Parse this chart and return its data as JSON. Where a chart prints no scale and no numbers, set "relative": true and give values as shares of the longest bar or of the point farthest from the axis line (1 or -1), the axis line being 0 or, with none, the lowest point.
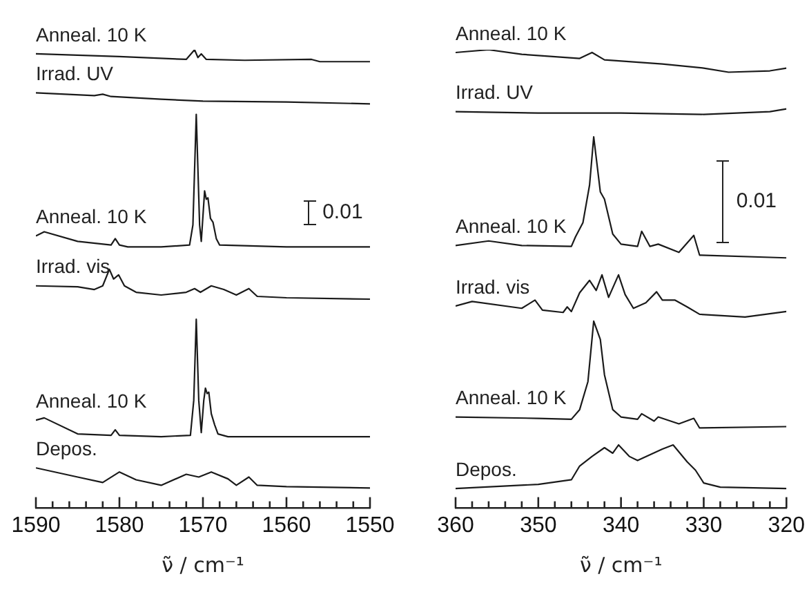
{
  "chart_data": [
    {
      "type": "line",
      "relative": true,
      "marker": "none",
      "xlabel": "ν̃ / cm⁻¹",
      "xlim": [
        1590,
        1550
      ],
      "xticks": [
        1590,
        {
          "value": 1588,
          "label": null
        },
        {
          "value": 1586,
          "label": null
        },
        {
          "value": 1584,
          "label": null
        },
        {
          "value": 1582,
          "label": null
        },
        1580,
        {
          "value": 1578,
          "label": null
        },
        {
          "value": 1576,
          "label": null
        },
        {
          "value": 1574,
          "label": null
        },
        {
          "value": 1572,
          "label": null
        },
        1570,
        {
          "value": 1568,
          "label": null
        },
        {
          "value": 1566,
          "label": null
        },
        {
          "value": 1564,
          "label": null
        },
        {
          "value": 1562,
          "label": null
        },
        1560,
        {
          "value": 1558,
          "label": null
        },
        {
          "value": 1556,
          "label": null
        },
        {
          "value": 1554,
          "label": null
        },
        {
          "value": 1552,
          "label": null
        },
        1550
      ],
      "annotations": [
        "0.01"
      ],
      "series": [
        {
          "name": "Anneal. 10 K",
          "color": "#1a1a1a",
          "x": [
            1590,
            1580,
            1572,
            1571,
            1570.6,
            1570.2,
            1569.6,
            1565,
            1557,
            1556,
            1550
          ],
          "values": [
            0.991,
            0.985,
            0.979,
            1,
            0.983,
            0.991,
            0.979,
            0.977,
            0.979,
            0.974,
            0.974
          ]
        },
        {
          "name": "Irrad. UV",
          "color": "#1a1a1a",
          "x": [
            1590,
            1583,
            1582,
            1581,
            1575,
            1570,
            1560,
            1550
          ],
          "values": [
            0.906,
            0.9,
            0.903,
            0.898,
            0.892,
            0.888,
            0.886,
            0.882
          ]
        },
        {
          "name": "Anneal. 10 K",
          "color": "#1a1a1a",
          "x": [
            1590,
            1589,
            1585,
            1581,
            1580.5,
            1580,
            1579,
            1575,
            1571.6,
            1571.2,
            1570.8,
            1570.4,
            1570.2,
            1569.8,
            1569.6,
            1569.4,
            1569.1,
            1568.8,
            1568.4,
            1568,
            1560,
            1550
          ],
          "values": [
            0.594,
            0.603,
            0.582,
            0.574,
            0.588,
            0.574,
            0.57,
            0.57,
            0.574,
            0.618,
            0.859,
            0.618,
            0.582,
            0.692,
            0.674,
            0.677,
            0.632,
            0.624,
            0.588,
            0.574,
            0.57,
            0.57
          ]
        },
        {
          "name": "Irrad. vis",
          "color": "#1a1a1a",
          "x": [
            1590,
            1585,
            1583,
            1582,
            1581.2,
            1580.7,
            1580.1,
            1579.4,
            1578,
            1575,
            1572,
            1571,
            1570.3,
            1569,
            1567.5,
            1566,
            1564.5,
            1563.5,
            1560,
            1550
          ],
          "values": [
            0.485,
            0.483,
            0.477,
            0.485,
            0.521,
            0.5,
            0.509,
            0.485,
            0.471,
            0.465,
            0.471,
            0.479,
            0.471,
            0.485,
            0.477,
            0.465,
            0.479,
            0.462,
            0.459,
            0.456
          ]
        },
        {
          "name": "Anneal. 10 K",
          "color": "#1a1a1a",
          "x": [
            1590,
            1589,
            1585,
            1581,
            1580.5,
            1580,
            1575,
            1571.5,
            1571.1,
            1570.8,
            1570.5,
            1570.2,
            1569.9,
            1569.7,
            1569.5,
            1569.3,
            1569,
            1568.6,
            1568.2,
            1567,
            1560,
            1550
          ],
          "values": [
            0.192,
            0.197,
            0.162,
            0.159,
            0.171,
            0.159,
            0.156,
            0.159,
            0.235,
            0.412,
            0.235,
            0.165,
            0.235,
            0.262,
            0.25,
            0.253,
            0.206,
            0.182,
            0.162,
            0.156,
            0.156,
            0.156
          ]
        },
        {
          "name": "Depos.",
          "color": "#1a1a1a",
          "x": [
            1590,
            1585,
            1582,
            1580,
            1578,
            1575,
            1572,
            1570.5,
            1569,
            1567,
            1566,
            1564.5,
            1563.5,
            1560,
            1550
          ],
          "values": [
            0.088,
            0.068,
            0.056,
            0.079,
            0.062,
            0.05,
            0.074,
            0.068,
            0.079,
            0.064,
            0.05,
            0.068,
            0.05,
            0.047,
            0.044
          ]
        }
      ]
    },
    {
      "type": "line",
      "relative": true,
      "marker": "none",
      "xlabel": "ν̃ / cm⁻¹",
      "xlim": [
        360,
        320
      ],
      "xticks": [
        360,
        {
          "value": 358,
          "label": null
        },
        {
          "value": 356,
          "label": null
        },
        {
          "value": 354,
          "label": null
        },
        {
          "value": 352,
          "label": null
        },
        350,
        {
          "value": 348,
          "label": null
        },
        {
          "value": 346,
          "label": null
        },
        {
          "value": 344,
          "label": null
        },
        {
          "value": 342,
          "label": null
        },
        340,
        {
          "value": 338,
          "label": null
        },
        {
          "value": 336,
          "label": null
        },
        {
          "value": 334,
          "label": null
        },
        {
          "value": 332,
          "label": null
        },
        330,
        {
          "value": 328,
          "label": null
        },
        {
          "value": 326,
          "label": null
        },
        {
          "value": 324,
          "label": null
        },
        {
          "value": 322,
          "label": null
        },
        320
      ],
      "annotations": [
        "0.01"
      ],
      "series": [
        {
          "name": "Anneal. 10 K",
          "color": "#1a1a1a",
          "x": [
            360,
            356,
            352,
            345,
            343.5,
            342,
            335,
            330,
            327,
            322,
            320
          ],
          "values": [
            0.994,
            1,
            0.99,
            0.981,
            0.994,
            0.978,
            0.969,
            0.96,
            0.951,
            0.954,
            0.96
          ]
        },
        {
          "name": "Irrad. UV",
          "color": "#1a1a1a",
          "x": [
            360,
            350,
            340,
            330,
            322,
            320
          ],
          "values": [
            0.865,
            0.862,
            0.862,
            0.859,
            0.865,
            0.871
          ]
        },
        {
          "name": "Anneal. 10 K",
          "color": "#1a1a1a",
          "x": [
            360,
            356,
            352,
            346,
            345.5,
            344.6,
            343.8,
            343.3,
            342.5,
            342,
            341,
            340,
            338,
            337.5,
            336.5,
            335.5,
            333,
            331.2,
            330.5,
            320
          ],
          "values": [
            0.573,
            0.583,
            0.573,
            0.571,
            0.592,
            0.623,
            0.705,
            0.81,
            0.69,
            0.674,
            0.598,
            0.576,
            0.571,
            0.604,
            0.571,
            0.576,
            0.558,
            0.595,
            0.552,
            0.546
          ]
        },
        {
          "name": "Irrad. vis",
          "color": "#1a1a1a",
          "x": [
            360,
            358,
            352,
            350.4,
            349.5,
            347,
            346.5,
            346,
            345,
            343.8,
            343,
            342.3,
            341.5,
            340.3,
            339.5,
            338.5,
            337,
            335.7,
            335,
            333.5,
            332,
            330.5,
            325,
            320
          ],
          "values": [
            0.441,
            0.451,
            0.436,
            0.454,
            0.432,
            0.427,
            0.439,
            0.429,
            0.47,
            0.497,
            0.475,
            0.509,
            0.46,
            0.509,
            0.466,
            0.436,
            0.448,
            0.472,
            0.454,
            0.454,
            0.439,
            0.423,
            0.417,
            0.429
          ]
        },
        {
          "name": "Anneal. 10 K",
          "color": "#1a1a1a",
          "x": [
            360,
            350,
            346,
            345,
            344,
            343.3,
            342.5,
            342,
            341,
            340,
            338,
            337.5,
            336,
            335.5,
            333,
            331.2,
            330.5,
            320
          ],
          "values": [
            0.199,
            0.196,
            0.194,
            0.215,
            0.276,
            0.408,
            0.368,
            0.291,
            0.215,
            0.199,
            0.194,
            0.206,
            0.19,
            0.199,
            0.184,
            0.196,
            0.175,
            0.178
          ]
        },
        {
          "name": "Depos.",
          "color": "#1a1a1a",
          "x": [
            360,
            350,
            346,
            345,
            343.5,
            342,
            341,
            340.3,
            339,
            338,
            335,
            333.7,
            332,
            331,
            330,
            328,
            320
          ],
          "values": [
            0.043,
            0.052,
            0.062,
            0.092,
            0.113,
            0.132,
            0.12,
            0.138,
            0.113,
            0.104,
            0.129,
            0.138,
            0.101,
            0.083,
            0.055,
            0.046,
            0.043
          ]
        }
      ]
    }
  ]
}
